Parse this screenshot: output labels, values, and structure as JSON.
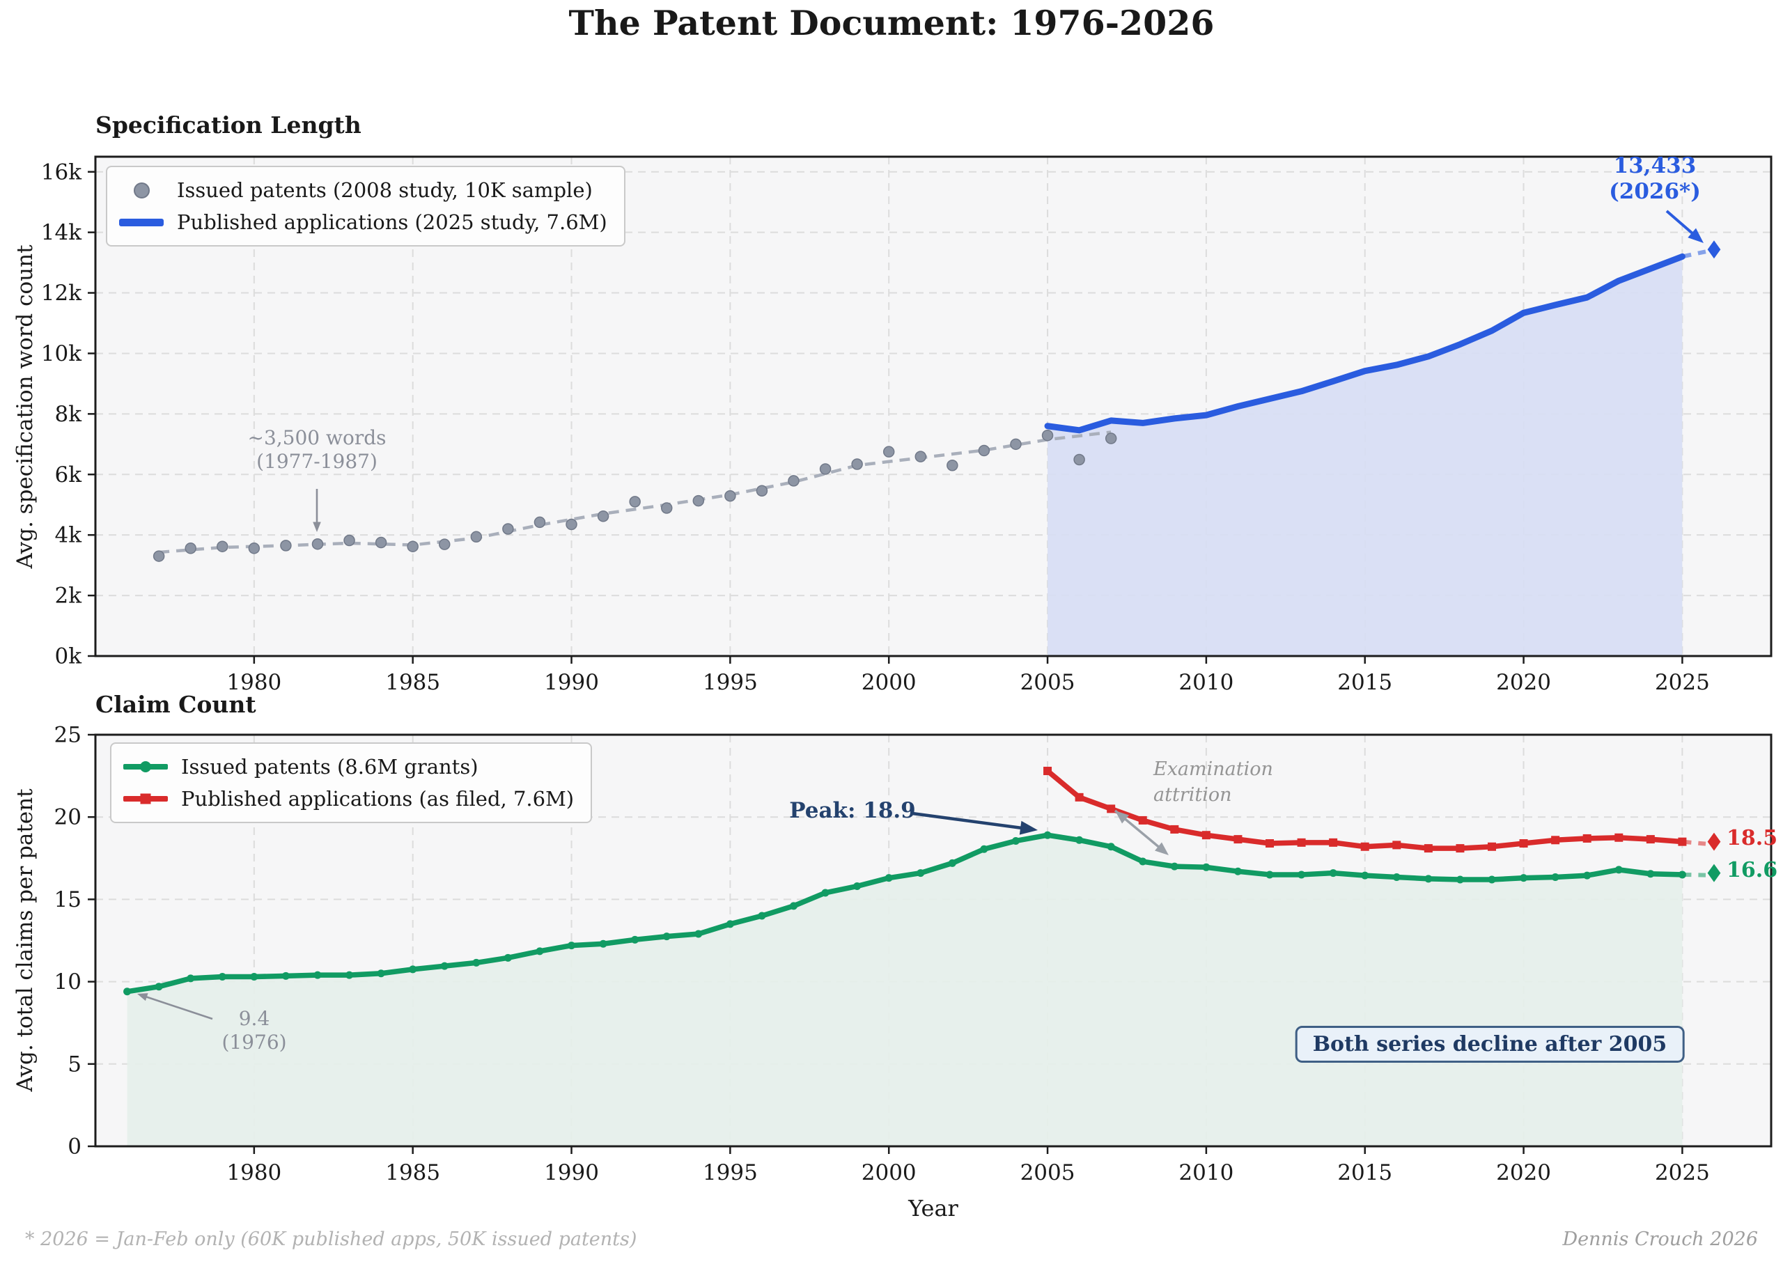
{
  "header": {
    "title": "The Patent Document: 1976-2026"
  },
  "footer": {
    "left_note": "* 2026 = Jan-Feb only (60K published apps, 50K issued patents)",
    "right_note": "Dennis Crouch 2026"
  },
  "colors": {
    "plot_bg": "#f6f6f7",
    "grid": "#dcdcdc",
    "frame": "#1c1c1c",
    "tick_text": "#191919",
    "accent_blue": "#2a5cdf",
    "blue_fill": "#d7def4",
    "blue_dash": "#7b9af0",
    "scatter_gray": "#8d95a4",
    "scatter_edge": "#717989",
    "trend_gray": "#a9afbb",
    "green": "#119b63",
    "green_fill": "#e6f0ea",
    "red": "#d92b2b",
    "navy": "#24426e",
    "annotation_gray": "#8b8f99"
  },
  "chart_data": [
    {
      "id": "specification-length",
      "type": "line",
      "title": "Specification Length",
      "xlabel": "",
      "ylabel": "Avg. specification word count",
      "xlim": [
        1975,
        2027.8
      ],
      "ylim": [
        0,
        16500
      ],
      "grid": true,
      "legend_position": "upper left",
      "xticks": [
        1980,
        1985,
        1990,
        1995,
        2000,
        2005,
        2010,
        2015,
        2020,
        2025
      ],
      "yticks": [
        [
          0,
          "0k"
        ],
        [
          2000,
          "2k"
        ],
        [
          4000,
          "4k"
        ],
        [
          6000,
          "6k"
        ],
        [
          8000,
          "8k"
        ],
        [
          10000,
          "10k"
        ],
        [
          12000,
          "12k"
        ],
        [
          14000,
          "14k"
        ],
        [
          16000,
          "16k"
        ]
      ],
      "series": [
        {
          "name": "Issued patents (2008 study, 10K sample)",
          "type": "scatter",
          "color": "#8d95a4",
          "x": [
            1977,
            1978,
            1979,
            1980,
            1981,
            1982,
            1983,
            1984,
            1985,
            1986,
            1987,
            1988,
            1989,
            1990,
            1991,
            1992,
            1993,
            1994,
            1995,
            1996,
            1997,
            1998,
            1999,
            2000,
            2001,
            2002,
            2003,
            2004,
            2005,
            2006,
            2007
          ],
          "y": [
            3300,
            3560,
            3620,
            3560,
            3650,
            3700,
            3820,
            3750,
            3620,
            3690,
            3940,
            4200,
            4420,
            4350,
            4620,
            5100,
            4890,
            5130,
            5290,
            5460,
            5790,
            6180,
            6340,
            6750,
            6590,
            6300,
            6790,
            7000,
            7290,
            6490,
            7190
          ]
        },
        {
          "name": "scatter-trend",
          "type": "trend",
          "color": "#a9afbb",
          "x": [
            1977,
            1979,
            1981,
            1983,
            1985,
            1987,
            1989,
            1991,
            1993,
            1995,
            1997,
            1999,
            2001,
            2003,
            2005,
            2007
          ],
          "y": [
            3430,
            3590,
            3650,
            3730,
            3670,
            3900,
            4330,
            4700,
            5000,
            5330,
            5750,
            6300,
            6550,
            6800,
            7150,
            7400
          ]
        },
        {
          "name": "Published applications (2025 study, 7.6M)",
          "type": "line",
          "color": "#2a5cdf",
          "fill": "#d7def4",
          "linewidth": 9,
          "x": [
            2005,
            2006,
            2007,
            2008,
            2009,
            2010,
            2011,
            2012,
            2013,
            2014,
            2015,
            2016,
            2017,
            2018,
            2019,
            2020,
            2021,
            2022,
            2023,
            2024,
            2025
          ],
          "y": [
            7600,
            7460,
            7780,
            7700,
            7850,
            7960,
            8250,
            8500,
            8750,
            9080,
            9420,
            9620,
            9900,
            10300,
            10750,
            11340,
            11600,
            11850,
            12400,
            12800,
            13200
          ],
          "projection": {
            "x": 2026,
            "y": 13433
          }
        }
      ],
      "annotations": [
        {
          "id": "avg-words-1977-1987",
          "text": "~3,500 words\n(1977-1987)"
        },
        {
          "id": "projection-2026",
          "text": "13,433\n(2026*)"
        }
      ]
    },
    {
      "id": "claim-count",
      "type": "line",
      "title": "Claim Count",
      "xlabel": "Year",
      "ylabel": "Avg. total claims per patent",
      "xlim": [
        1975,
        2027.8
      ],
      "ylim": [
        0,
        25
      ],
      "grid": true,
      "legend_position": "upper left",
      "xticks": [
        1980,
        1985,
        1990,
        1995,
        2000,
        2005,
        2010,
        2015,
        2020,
        2025
      ],
      "yticks": [
        [
          0,
          "0"
        ],
        [
          5,
          "5"
        ],
        [
          10,
          "10"
        ],
        [
          15,
          "15"
        ],
        [
          20,
          "20"
        ],
        [
          25,
          "25"
        ]
      ],
      "series": [
        {
          "name": "Issued patents (8.6M grants)",
          "type": "line",
          "color": "#119b63",
          "fill": "#e6f0ea",
          "marker": "circle",
          "linewidth": 7.5,
          "x": [
            1976,
            1977,
            1978,
            1979,
            1980,
            1981,
            1982,
            1983,
            1984,
            1985,
            1986,
            1987,
            1988,
            1989,
            1990,
            1991,
            1992,
            1993,
            1994,
            1995,
            1996,
            1997,
            1998,
            1999,
            2000,
            2001,
            2002,
            2003,
            2004,
            2005,
            2006,
            2007,
            2008,
            2009,
            2010,
            2011,
            2012,
            2013,
            2014,
            2015,
            2016,
            2017,
            2018,
            2019,
            2020,
            2021,
            2022,
            2023,
            2024,
            2025
          ],
          "y": [
            9.4,
            9.7,
            10.2,
            10.3,
            10.3,
            10.35,
            10.4,
            10.4,
            10.5,
            10.75,
            10.95,
            11.15,
            11.45,
            11.85,
            12.2,
            12.3,
            12.55,
            12.75,
            12.9,
            13.5,
            14.0,
            14.6,
            15.4,
            15.8,
            16.3,
            16.6,
            17.2,
            18.05,
            18.55,
            18.9,
            18.6,
            18.2,
            17.3,
            17.0,
            16.95,
            16.7,
            16.5,
            16.5,
            16.6,
            16.45,
            16.35,
            16.25,
            16.2,
            16.2,
            16.3,
            16.35,
            16.45,
            16.8,
            16.55,
            16.5
          ],
          "projection": {
            "x": 2026,
            "y": 16.6
          }
        },
        {
          "name": "Published applications (as filed, 7.6M)",
          "type": "line",
          "color": "#d92b2b",
          "marker": "square",
          "linewidth": 7.5,
          "x": [
            2005,
            2006,
            2007,
            2008,
            2009,
            2010,
            2011,
            2012,
            2013,
            2014,
            2015,
            2016,
            2017,
            2018,
            2019,
            2020,
            2021,
            2022,
            2023,
            2024,
            2025
          ],
          "y": [
            22.8,
            21.2,
            20.5,
            19.8,
            19.25,
            18.9,
            18.65,
            18.4,
            18.45,
            18.45,
            18.2,
            18.3,
            18.1,
            18.1,
            18.2,
            18.4,
            18.6,
            18.7,
            18.75,
            18.65,
            18.5
          ],
          "projection": {
            "x": 2026,
            "y": 18.5
          }
        }
      ],
      "annotations": [
        {
          "id": "peak-2005",
          "text": "Peak: 18.9"
        },
        {
          "id": "examination-attrition",
          "text": "Examination\nattrition"
        },
        {
          "id": "first-value-1976",
          "text": "9.4\n(1976)"
        },
        {
          "id": "decline-note",
          "text": "Both series decline after 2005"
        },
        {
          "id": "end-label-applications",
          "text": "18.5"
        },
        {
          "id": "end-label-grants",
          "text": "16.6"
        }
      ]
    }
  ]
}
